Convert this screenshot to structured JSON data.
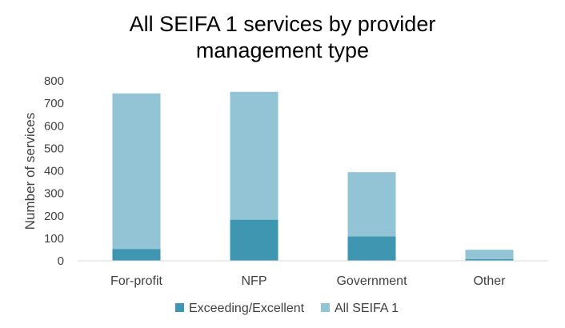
{
  "chart_data": {
    "type": "bar",
    "title_lines": [
      "All SEIFA 1 services by provider",
      "management type"
    ],
    "xlabel": "",
    "ylabel": "Number of services",
    "ylim": [
      0,
      800
    ],
    "yticks": [
      0,
      100,
      200,
      300,
      400,
      500,
      600,
      700,
      800
    ],
    "grid": false,
    "legend_position": "bottom",
    "categories": [
      "For-profit",
      "NFP",
      "Government",
      "Other"
    ],
    "series": [
      {
        "name": "Exceeding/Excellent",
        "values": [
          52,
          182,
          108,
          7
        ],
        "color": "#3e96b0"
      },
      {
        "name": "All SEIFA 1",
        "values": [
          744,
          751,
          394,
          49
        ],
        "color": "#92c4d6"
      }
    ]
  }
}
